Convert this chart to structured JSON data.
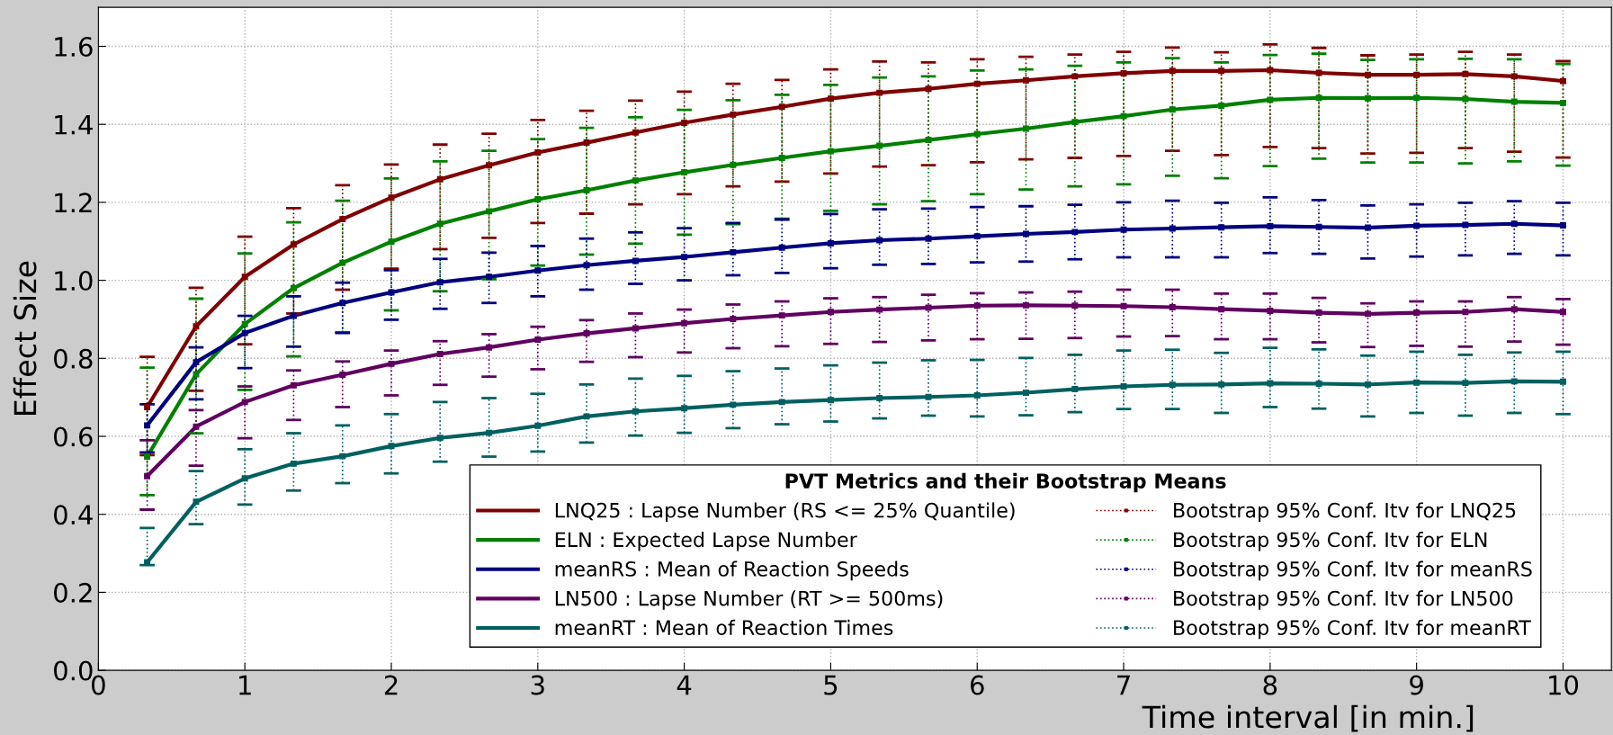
{
  "chart_data": {
    "type": "line",
    "xlabel": "Time interval [in min.]",
    "ylabel": "Effect Size",
    "legend_title": "PVT Metrics and their Bootstrap Means",
    "legend": "bottom right",
    "grid": true,
    "marker": "none",
    "line_style": "solid",
    "x": [
      0.333,
      0.667,
      1,
      1.333,
      1.667,
      2,
      2.333,
      2.667,
      3,
      3.333,
      3.667,
      4,
      4.333,
      4.667,
      5,
      5.333,
      5.667,
      6,
      6.333,
      6.667,
      7,
      7.333,
      7.667,
      8,
      8.333,
      8.667,
      9,
      9.333,
      9.667,
      10
    ],
    "xlim": [
      0,
      10.33
    ],
    "ylim": [
      0,
      1.7
    ],
    "xticks": [
      0,
      1,
      2,
      3,
      4,
      5,
      6,
      7,
      8,
      9,
      10
    ],
    "yticks": [
      {
        "value": 0,
        "label": "0.0"
      },
      {
        "value": 0.2,
        "label": "0.2"
      },
      {
        "value": 0.4,
        "label": "0.4"
      },
      {
        "value": 0.6,
        "label": "0.6"
      },
      {
        "value": 0.8,
        "label": "0.8"
      },
      {
        "value": 1.0,
        "label": "1.0"
      },
      {
        "value": 1.2,
        "label": "1.2"
      },
      {
        "value": 1.4,
        "label": "1.4"
      },
      {
        "value": 1.6,
        "label": "1.6"
      }
    ],
    "series": [
      {
        "name": "LNQ25 : Lapse Number (RS <= 25% Quantile)",
        "color": "#800000",
        "values": [
          0.675,
          0.882,
          1.009,
          1.092,
          1.157,
          1.212,
          1.259,
          1.295,
          1.328,
          1.353,
          1.379,
          1.404,
          1.425,
          1.445,
          1.466,
          1.481,
          1.491,
          1.504,
          1.513,
          1.523,
          1.531,
          1.537,
          1.537,
          1.539,
          1.532,
          1.527,
          1.527,
          1.529,
          1.523,
          1.511
        ]
      },
      {
        "name": "ELN : Expected Lapse Number",
        "color": "#008000",
        "values": [
          0.548,
          0.759,
          0.888,
          0.98,
          1.045,
          1.099,
          1.145,
          1.177,
          1.208,
          1.231,
          1.256,
          1.277,
          1.296,
          1.314,
          1.331,
          1.345,
          1.36,
          1.375,
          1.389,
          1.406,
          1.421,
          1.438,
          1.448,
          1.463,
          1.468,
          1.467,
          1.468,
          1.465,
          1.458,
          1.455
        ]
      },
      {
        "name": "meanRS : Mean of Reaction Speeds",
        "color": "#000080",
        "values": [
          0.628,
          0.79,
          0.865,
          0.909,
          0.942,
          0.969,
          0.995,
          1.009,
          1.025,
          1.039,
          1.05,
          1.06,
          1.072,
          1.084,
          1.095,
          1.103,
          1.107,
          1.113,
          1.119,
          1.124,
          1.13,
          1.133,
          1.136,
          1.139,
          1.137,
          1.135,
          1.14,
          1.142,
          1.145,
          1.141
        ]
      },
      {
        "name": "LN500 : Lapse Number (RT >= 500ms)",
        "color": "#600060",
        "values": [
          0.498,
          0.625,
          0.688,
          0.731,
          0.758,
          0.786,
          0.811,
          0.828,
          0.848,
          0.864,
          0.877,
          0.89,
          0.901,
          0.91,
          0.919,
          0.925,
          0.93,
          0.935,
          0.936,
          0.935,
          0.934,
          0.931,
          0.926,
          0.922,
          0.917,
          0.914,
          0.917,
          0.919,
          0.926,
          0.919
        ]
      },
      {
        "name": "meanRT : Mean of Reaction Times",
        "color": "#006060",
        "values": [
          0.277,
          0.432,
          0.492,
          0.53,
          0.549,
          0.575,
          0.596,
          0.609,
          0.627,
          0.651,
          0.664,
          0.672,
          0.681,
          0.688,
          0.693,
          0.698,
          0.701,
          0.705,
          0.712,
          0.721,
          0.728,
          0.732,
          0.733,
          0.736,
          0.735,
          0.733,
          0.738,
          0.737,
          0.741,
          0.74
        ]
      },
      {
        "name": "Bootstrap 95% Conf. Itv for LNQ25",
        "type": "scatter",
        "marker": "square",
        "line_style": "dotted",
        "color": "#800000",
        "values": [
          0.675,
          0.882,
          1.009,
          1.092,
          1.157,
          1.212,
          1.259,
          1.295,
          1.328,
          1.353,
          1.379,
          1.404,
          1.425,
          1.445,
          1.466,
          1.481,
          1.491,
          1.504,
          1.513,
          1.523,
          1.531,
          1.537,
          1.537,
          1.539,
          1.532,
          1.527,
          1.527,
          1.529,
          1.523,
          1.511
        ],
        "errors": [
          [
            0.552,
            0.804
          ],
          [
            0.717,
            0.981
          ],
          [
            0.836,
            1.112
          ],
          [
            0.915,
            1.185
          ],
          [
            0.976,
            1.244
          ],
          [
            1.03,
            1.297
          ],
          [
            1.08,
            1.348
          ],
          [
            1.109,
            1.376
          ],
          [
            1.147,
            1.411
          ],
          [
            1.171,
            1.435
          ],
          [
            1.195,
            1.461
          ],
          [
            1.221,
            1.484
          ],
          [
            1.241,
            1.504
          ],
          [
            1.253,
            1.514
          ],
          [
            1.274,
            1.541
          ],
          [
            1.292,
            1.561
          ],
          [
            1.295,
            1.559
          ],
          [
            1.303,
            1.567
          ],
          [
            1.31,
            1.573
          ],
          [
            1.314,
            1.579
          ],
          [
            1.319,
            1.586
          ],
          [
            1.332,
            1.597
          ],
          [
            1.321,
            1.585
          ],
          [
            1.342,
            1.605
          ],
          [
            1.339,
            1.596
          ],
          [
            1.325,
            1.577
          ],
          [
            1.327,
            1.579
          ],
          [
            1.339,
            1.586
          ],
          [
            1.33,
            1.579
          ],
          [
            1.315,
            1.562
          ]
        ]
      },
      {
        "name": "Bootstrap 95% Conf. Itv for ELN",
        "type": "scatter",
        "marker": "square",
        "line_style": "dotted",
        "color": "#008000",
        "values": [
          0.548,
          0.759,
          0.888,
          0.98,
          1.045,
          1.099,
          1.145,
          1.177,
          1.208,
          1.231,
          1.256,
          1.277,
          1.296,
          1.314,
          1.331,
          1.345,
          1.36,
          1.375,
          1.389,
          1.406,
          1.421,
          1.438,
          1.448,
          1.463,
          1.468,
          1.467,
          1.468,
          1.465,
          1.458,
          1.455
        ],
        "errors": [
          [
            0.449,
            0.776
          ],
          [
            0.608,
            0.953
          ],
          [
            0.719,
            1.069
          ],
          [
            0.805,
            1.149
          ],
          [
            0.867,
            1.204
          ],
          [
            0.923,
            1.261
          ],
          [
            0.972,
            1.305
          ],
          [
            1.003,
            1.332
          ],
          [
            1.038,
            1.362
          ],
          [
            1.066,
            1.391
          ],
          [
            1.094,
            1.418
          ],
          [
            1.117,
            1.437
          ],
          [
            1.144,
            1.462
          ],
          [
            1.158,
            1.476
          ],
          [
            1.178,
            1.501
          ],
          [
            1.195,
            1.52
          ],
          [
            1.203,
            1.523
          ],
          [
            1.221,
            1.538
          ],
          [
            1.233,
            1.541
          ],
          [
            1.241,
            1.55
          ],
          [
            1.246,
            1.559
          ],
          [
            1.268,
            1.57
          ],
          [
            1.262,
            1.559
          ],
          [
            1.293,
            1.578
          ],
          [
            1.312,
            1.581
          ],
          [
            1.302,
            1.565
          ],
          [
            1.302,
            1.567
          ],
          [
            1.3,
            1.568
          ],
          [
            1.305,
            1.567
          ],
          [
            1.294,
            1.555
          ]
        ]
      },
      {
        "name": "Bootstrap 95% Conf. Itv for meanRS",
        "type": "scatter",
        "marker": "square",
        "line_style": "dotted",
        "color": "#000080",
        "values": [
          0.628,
          0.79,
          0.865,
          0.909,
          0.942,
          0.969,
          0.995,
          1.009,
          1.025,
          1.039,
          1.05,
          1.06,
          1.072,
          1.084,
          1.095,
          1.103,
          1.107,
          1.113,
          1.119,
          1.124,
          1.13,
          1.133,
          1.136,
          1.139,
          1.137,
          1.135,
          1.14,
          1.142,
          1.145,
          1.141
        ],
        "errors": [
          [
            0.559,
            0.682
          ],
          [
            0.695,
            0.828
          ],
          [
            0.775,
            0.909
          ],
          [
            0.83,
            0.959
          ],
          [
            0.865,
            0.994
          ],
          [
            0.899,
            1.026
          ],
          [
            0.927,
            1.055
          ],
          [
            0.942,
            1.071
          ],
          [
            0.959,
            1.088
          ],
          [
            0.976,
            1.107
          ],
          [
            0.991,
            1.123
          ],
          [
            1.0,
            1.134
          ],
          [
            1.013,
            1.147
          ],
          [
            1.019,
            1.156
          ],
          [
            1.031,
            1.17
          ],
          [
            1.04,
            1.182
          ],
          [
            1.042,
            1.184
          ],
          [
            1.046,
            1.188
          ],
          [
            1.048,
            1.19
          ],
          [
            1.054,
            1.194
          ],
          [
            1.059,
            1.2
          ],
          [
            1.059,
            1.204
          ],
          [
            1.059,
            1.199
          ],
          [
            1.07,
            1.213
          ],
          [
            1.068,
            1.206
          ],
          [
            1.056,
            1.192
          ],
          [
            1.061,
            1.195
          ],
          [
            1.064,
            1.199
          ],
          [
            1.068,
            1.203
          ],
          [
            1.064,
            1.199
          ]
        ]
      },
      {
        "name": "Bootstrap 95% Conf. Itv for LN500",
        "type": "scatter",
        "marker": "square",
        "line_style": "dotted",
        "color": "#600060",
        "values": [
          0.498,
          0.625,
          0.688,
          0.731,
          0.758,
          0.786,
          0.811,
          0.828,
          0.848,
          0.864,
          0.877,
          0.89,
          0.901,
          0.91,
          0.919,
          0.925,
          0.93,
          0.935,
          0.936,
          0.935,
          0.934,
          0.931,
          0.926,
          0.922,
          0.917,
          0.914,
          0.917,
          0.919,
          0.926,
          0.919
        ],
        "errors": [
          [
            0.412,
            0.59
          ],
          [
            0.525,
            0.667
          ],
          [
            0.595,
            0.728
          ],
          [
            0.642,
            0.769
          ],
          [
            0.675,
            0.792
          ],
          [
            0.705,
            0.82
          ],
          [
            0.732,
            0.844
          ],
          [
            0.753,
            0.862
          ],
          [
            0.772,
            0.881
          ],
          [
            0.791,
            0.898
          ],
          [
            0.803,
            0.915
          ],
          [
            0.815,
            0.925
          ],
          [
            0.826,
            0.938
          ],
          [
            0.831,
            0.946
          ],
          [
            0.837,
            0.954
          ],
          [
            0.842,
            0.957
          ],
          [
            0.846,
            0.963
          ],
          [
            0.849,
            0.967
          ],
          [
            0.85,
            0.969
          ],
          [
            0.852,
            0.971
          ],
          [
            0.856,
            0.976
          ],
          [
            0.857,
            0.976
          ],
          [
            0.849,
            0.966
          ],
          [
            0.849,
            0.966
          ],
          [
            0.841,
            0.955
          ],
          [
            0.829,
            0.941
          ],
          [
            0.832,
            0.946
          ],
          [
            0.83,
            0.946
          ],
          [
            0.843,
            0.957
          ],
          [
            0.835,
            0.952
          ]
        ]
      },
      {
        "name": "Bootstrap 95% Conf. Itv for meanRT",
        "type": "scatter",
        "marker": "square",
        "line_style": "dotted",
        "color": "#006060",
        "values": [
          0.277,
          0.432,
          0.492,
          0.53,
          0.549,
          0.575,
          0.596,
          0.609,
          0.627,
          0.651,
          0.664,
          0.672,
          0.681,
          0.688,
          0.693,
          0.698,
          0.701,
          0.705,
          0.712,
          0.721,
          0.728,
          0.732,
          0.733,
          0.736,
          0.735,
          0.733,
          0.738,
          0.737,
          0.741,
          0.74
        ],
        "errors": [
          [
            0.27,
            0.365
          ],
          [
            0.375,
            0.511
          ],
          [
            0.425,
            0.567
          ],
          [
            0.461,
            0.608
          ],
          [
            0.48,
            0.628
          ],
          [
            0.505,
            0.657
          ],
          [
            0.535,
            0.688
          ],
          [
            0.548,
            0.698
          ],
          [
            0.561,
            0.709
          ],
          [
            0.584,
            0.733
          ],
          [
            0.602,
            0.748
          ],
          [
            0.609,
            0.755
          ],
          [
            0.621,
            0.767
          ],
          [
            0.631,
            0.774
          ],
          [
            0.638,
            0.782
          ],
          [
            0.646,
            0.789
          ],
          [
            0.653,
            0.795
          ],
          [
            0.651,
            0.796
          ],
          [
            0.654,
            0.801
          ],
          [
            0.662,
            0.809
          ],
          [
            0.67,
            0.82
          ],
          [
            0.67,
            0.822
          ],
          [
            0.66,
            0.814
          ],
          [
            0.675,
            0.827
          ],
          [
            0.671,
            0.823
          ],
          [
            0.651,
            0.807
          ],
          [
            0.66,
            0.817
          ],
          [
            0.653,
            0.809
          ],
          [
            0.66,
            0.815
          ],
          [
            0.657,
            0.817
          ]
        ]
      }
    ]
  }
}
